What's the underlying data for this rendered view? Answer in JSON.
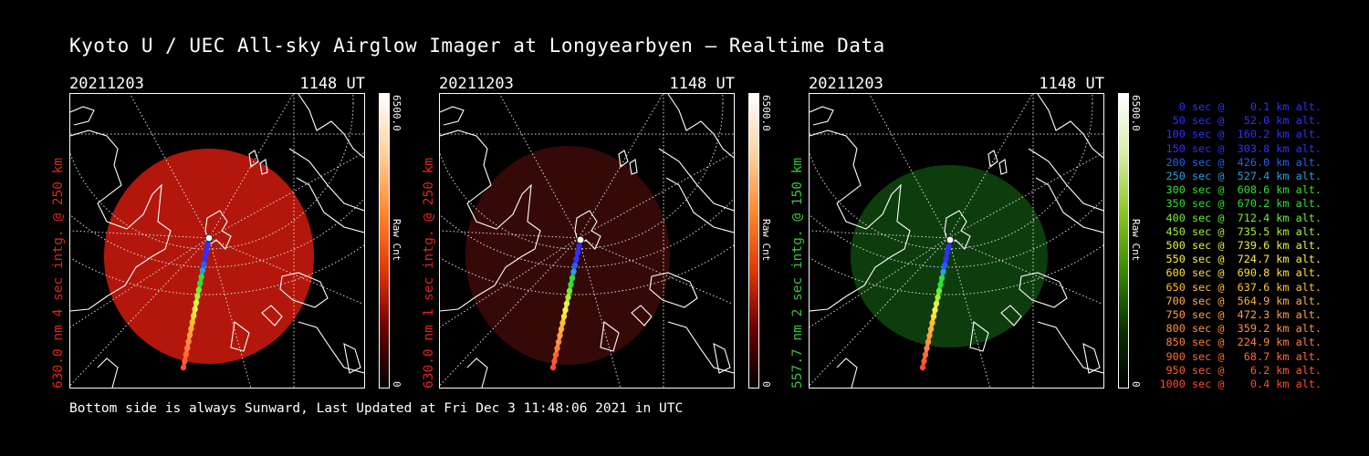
{
  "title": "Kyoto U / UEC All-sky Airglow Imager at Longyearbyen — Realtime Data",
  "footer": "Bottom side is always Sunward, Last Updated at Fri Dec  3 11:48:06 2021 in UTC",
  "colors": {
    "red_panel": "#c01c10",
    "red_dim": "#3a0a06",
    "green_panel": "#0c4a0c",
    "red_label": "#e0261a",
    "green_label": "#3cc43c"
  },
  "panels": [
    {
      "date": "20211203",
      "time": "1148 UT",
      "ylabel": "630.0 nm 4 sec intg. @ 250 km",
      "label_color": "#e0261a",
      "sky_color": "#b3170c",
      "cbar_max": "6500.0",
      "cbar_min": "0",
      "cbar_unit": "Raw Cnt",
      "cbar_gradient": [
        "#ffffff",
        "#ffd2a0",
        "#ff8a30",
        "#e03808",
        "#6a0000",
        "#000000"
      ]
    },
    {
      "date": "20211203",
      "time": "1148 UT",
      "ylabel": "630.0 nm 1 sec intg. @ 250 km",
      "label_color": "#e0261a",
      "sky_color": "#350907",
      "cbar_max": "6500.0",
      "cbar_min": "0",
      "cbar_unit": "Raw Cnt",
      "cbar_gradient": [
        "#ffffff",
        "#ffd2a0",
        "#ff8a30",
        "#e03808",
        "#6a0000",
        "#000000"
      ]
    },
    {
      "date": "20211203",
      "time": "1148 UT",
      "ylabel": "557.7 nm 2 sec intg. @ 150 km",
      "label_color": "#3cc43c",
      "sky_color": "#0d3d0d",
      "cbar_max": "6500.0",
      "cbar_min": "0",
      "cbar_unit": "Raw Cnt",
      "cbar_gradient": [
        "#ffffff",
        "#d8f0a8",
        "#8ec820",
        "#3a8a00",
        "#0a3000",
        "#000000"
      ]
    }
  ],
  "legend": [
    {
      "text": "   0 sec @    0.1 km alt.",
      "color": "#3030ff"
    },
    {
      "text": "  50 sec @   52.0 km alt.",
      "color": "#3030ff"
    },
    {
      "text": " 100 sec @  160.2 km alt.",
      "color": "#3030ff"
    },
    {
      "text": " 150 sec @  303.8 km alt.",
      "color": "#3030ff"
    },
    {
      "text": " 200 sec @  426.0 km alt.",
      "color": "#2060ff"
    },
    {
      "text": " 250 sec @  527.4 km alt.",
      "color": "#2aa0d8"
    },
    {
      "text": " 300 sec @  608.6 km alt.",
      "color": "#30e030"
    },
    {
      "text": " 350 sec @  670.2 km alt.",
      "color": "#30e030"
    },
    {
      "text": " 400 sec @  712.4 km alt.",
      "color": "#70f030"
    },
    {
      "text": " 450 sec @  735.5 km alt.",
      "color": "#a8f030"
    },
    {
      "text": " 500 sec @  739.6 km alt.",
      "color": "#e8f040"
    },
    {
      "text": " 550 sec @  724.7 km alt.",
      "color": "#fff040"
    },
    {
      "text": " 600 sec @  690.8 km alt.",
      "color": "#ffe030"
    },
    {
      "text": " 650 sec @  637.6 km alt.",
      "color": "#ffc030"
    },
    {
      "text": " 700 sec @  564.9 km alt.",
      "color": "#ffb040"
    },
    {
      "text": " 750 sec @  472.3 km alt.",
      "color": "#ffa040"
    },
    {
      "text": " 800 sec @  359.2 km alt.",
      "color": "#ff9040"
    },
    {
      "text": " 850 sec @  224.9 km alt.",
      "color": "#ff8040"
    },
    {
      "text": " 900 sec @   68.7 km alt.",
      "color": "#ff6a30"
    },
    {
      "text": " 950 sec @    6.2 km alt.",
      "color": "#ff5a30"
    },
    {
      "text": "1000 sec @    0.4 km alt.",
      "color": "#ff4a30"
    }
  ]
}
